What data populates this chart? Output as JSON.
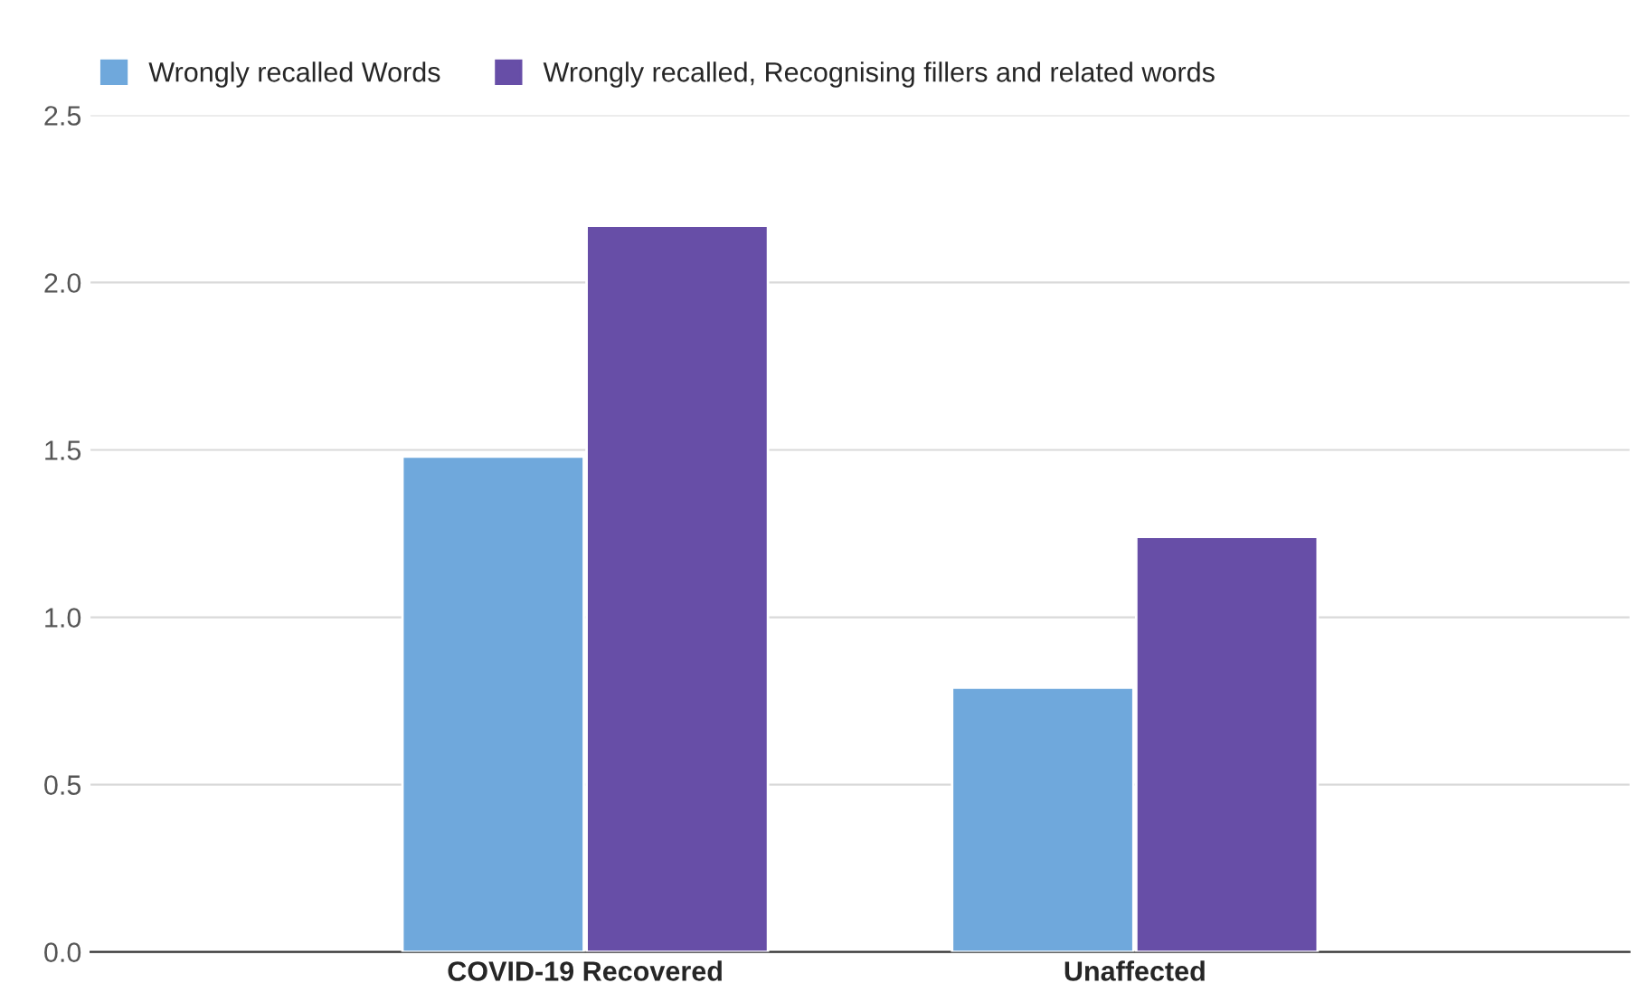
{
  "chart_data": {
    "type": "bar",
    "categories": [
      "COVID-19 Recovered",
      "Unaffected"
    ],
    "series": [
      {
        "name": "Wrongly recalled Words",
        "color": "#6fa8dc",
        "values": [
          1.48,
          0.79
        ]
      },
      {
        "name": "Wrongly recalled, Recognising fillers and related words",
        "color": "#674ea7",
        "values": [
          2.17,
          1.24
        ]
      }
    ],
    "ylim": [
      0,
      2.5
    ],
    "yticks": [
      {
        "value": 0,
        "label": "0.0"
      },
      {
        "value": 0.5,
        "label": "0.5"
      },
      {
        "value": 1,
        "label": "1.0"
      },
      {
        "value": 1.5,
        "label": "1.5"
      },
      {
        "value": 2,
        "label": "2.0"
      },
      {
        "value": 2.5,
        "label": "2.5"
      }
    ],
    "grid": "y",
    "legend": "top left"
  }
}
